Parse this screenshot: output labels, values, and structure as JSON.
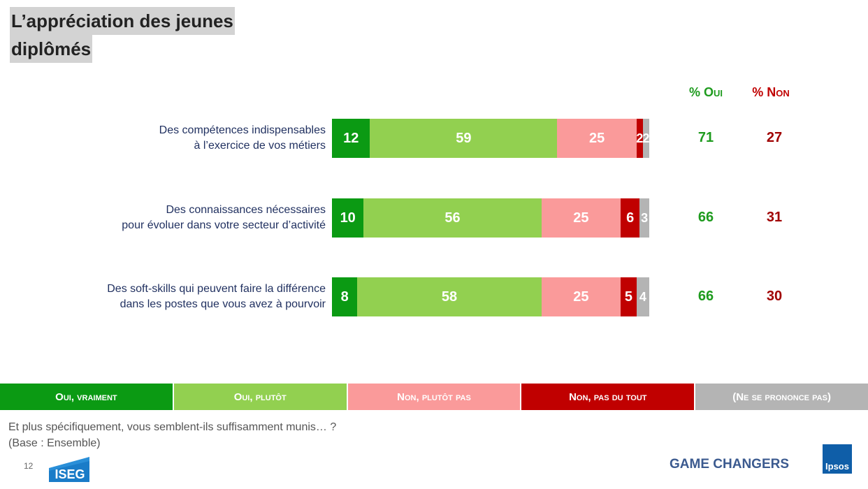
{
  "title_lines": [
    "L’appréciation des jeunes",
    "diplômés"
  ],
  "headers": {
    "oui": "% Oui",
    "non": "% Non"
  },
  "colors": {
    "oui_vraiment": "#0b9a13",
    "oui_plutot": "#92d050",
    "non_plutot_pas": "#fa9a9a",
    "non_pas_du_tout": "#c00000",
    "nsp": "#b4b4b4"
  },
  "chart_data": {
    "type": "bar",
    "orientation": "horizontal",
    "stacked": true,
    "categories": [
      "Des compétences indispensables\nà l’exercice de vos métiers",
      "Des connaissances nécessaires\npour évoluer dans votre secteur d’activité",
      "Des soft-skills qui peuvent faire la différence\ndans les postes que vous avez à pourvoir"
    ],
    "series": [
      {
        "name": "Oui, vraiment",
        "values": [
          12,
          10,
          8
        ]
      },
      {
        "name": "Oui, plutôt",
        "values": [
          59,
          56,
          58
        ]
      },
      {
        "name": "Non, plutôt pas",
        "values": [
          25,
          25,
          25
        ]
      },
      {
        "name": "Non, pas du tout",
        "values": [
          2,
          6,
          5
        ]
      },
      {
        "name": "(Ne se prononce pas)",
        "values": [
          2,
          3,
          4
        ]
      }
    ],
    "totals_oui": [
      71,
      66,
      66
    ],
    "totals_non": [
      27,
      31,
      30
    ],
    "xlim": [
      0,
      100
    ],
    "legend_position": "bottom"
  },
  "legend": [
    "Oui, vraiment",
    "Oui, plutôt",
    "Non, plutôt pas",
    "Non, pas du tout",
    "(Ne se prononce pas)"
  ],
  "question": "Et plus spécifiquement, vous semblent-ils suffisamment munis… ?",
  "base": "(Base : Ensemble)",
  "page_number": "12",
  "footer": {
    "tagline": "GAME CHANGERS",
    "ipsos_logo_text": "Ipsos",
    "iseg_logo_text": "ISEG"
  }
}
